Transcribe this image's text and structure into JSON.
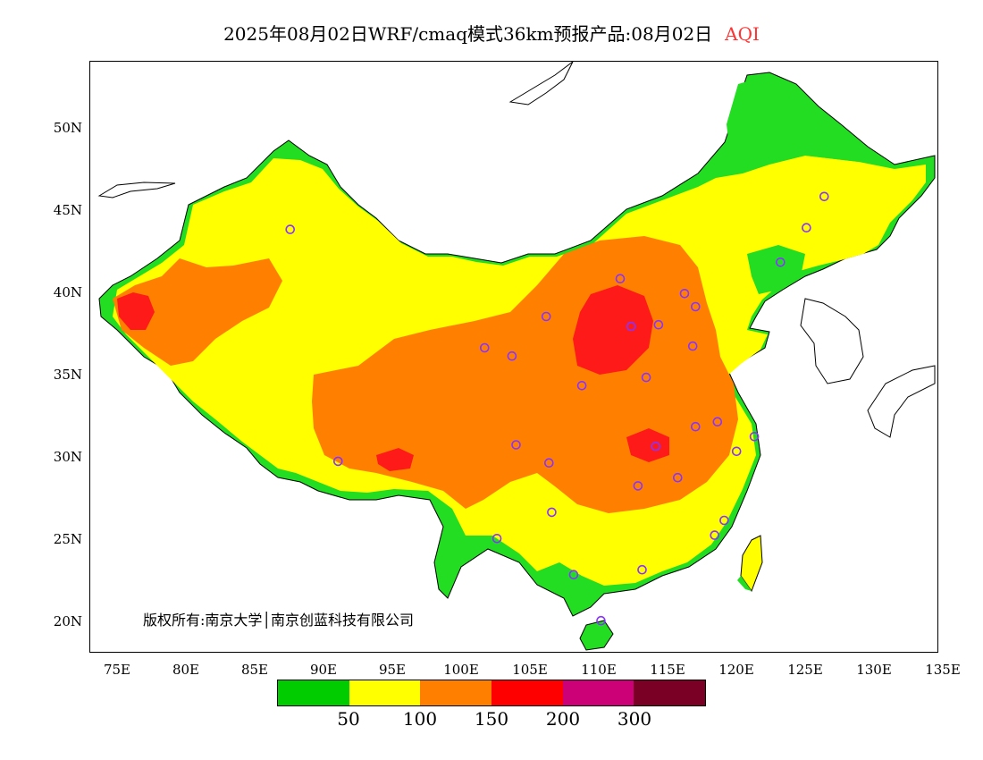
{
  "title": {
    "main": "2025年08月02日WRF/cmaq模式36km预报产品:08月02日",
    "variable": "AQI"
  },
  "axes": {
    "lat_labels": [
      "50N",
      "45N",
      "40N",
      "35N",
      "30N",
      "25N",
      "20N"
    ],
    "lon_labels": [
      "75E",
      "80E",
      "85E",
      "90E",
      "95E",
      "100E",
      "105E",
      "110E",
      "115E",
      "120E",
      "125E",
      "130E",
      "135E"
    ]
  },
  "copyright": "版权所有:南京大学│南京创蓝科技有限公司",
  "legend": {
    "colors": [
      "#00cc00",
      "#ffff00",
      "#ff8000",
      "#ff0000",
      "#cc0077",
      "#7a0026"
    ],
    "labels": [
      "50",
      "100",
      "150",
      "200",
      "300"
    ]
  },
  "colors": {
    "green": "#22dd22",
    "yellow": "#ffff00",
    "orange": "#ff8000",
    "red": "#ff1a1a",
    "station": "#8833ff",
    "aqi_title": "#ff3333"
  },
  "stations": [
    {
      "lon": 87.6,
      "lat": 43.8
    },
    {
      "lon": 101.8,
      "lat": 36.6
    },
    {
      "lon": 103.8,
      "lat": 36.1
    },
    {
      "lon": 106.3,
      "lat": 38.5
    },
    {
      "lon": 111.7,
      "lat": 40.8
    },
    {
      "lon": 112.5,
      "lat": 37.9
    },
    {
      "lon": 114.5,
      "lat": 38.0
    },
    {
      "lon": 116.4,
      "lat": 39.9
    },
    {
      "lon": 117.2,
      "lat": 39.1
    },
    {
      "lon": 117.0,
      "lat": 36.7
    },
    {
      "lon": 113.6,
      "lat": 34.8
    },
    {
      "lon": 108.9,
      "lat": 34.3
    },
    {
      "lon": 104.1,
      "lat": 30.7
    },
    {
      "lon": 106.5,
      "lat": 29.6
    },
    {
      "lon": 114.3,
      "lat": 30.6
    },
    {
      "lon": 117.2,
      "lat": 31.8
    },
    {
      "lon": 118.8,
      "lat": 32.1
    },
    {
      "lon": 121.5,
      "lat": 31.2
    },
    {
      "lon": 120.2,
      "lat": 30.3
    },
    {
      "lon": 113.0,
      "lat": 28.2
    },
    {
      "lon": 115.9,
      "lat": 28.7
    },
    {
      "lon": 119.3,
      "lat": 26.1
    },
    {
      "lon": 106.7,
      "lat": 26.6
    },
    {
      "lon": 102.7,
      "lat": 25.0
    },
    {
      "lon": 108.3,
      "lat": 22.8
    },
    {
      "lon": 113.3,
      "lat": 23.1
    },
    {
      "lon": 110.3,
      "lat": 20.0
    },
    {
      "lon": 91.1,
      "lat": 29.7
    },
    {
      "lon": 123.4,
      "lat": 41.8
    },
    {
      "lon": 125.3,
      "lat": 43.9
    },
    {
      "lon": 126.6,
      "lat": 45.8
    },
    {
      "lon": 118.6,
      "lat": 25.2
    }
  ]
}
